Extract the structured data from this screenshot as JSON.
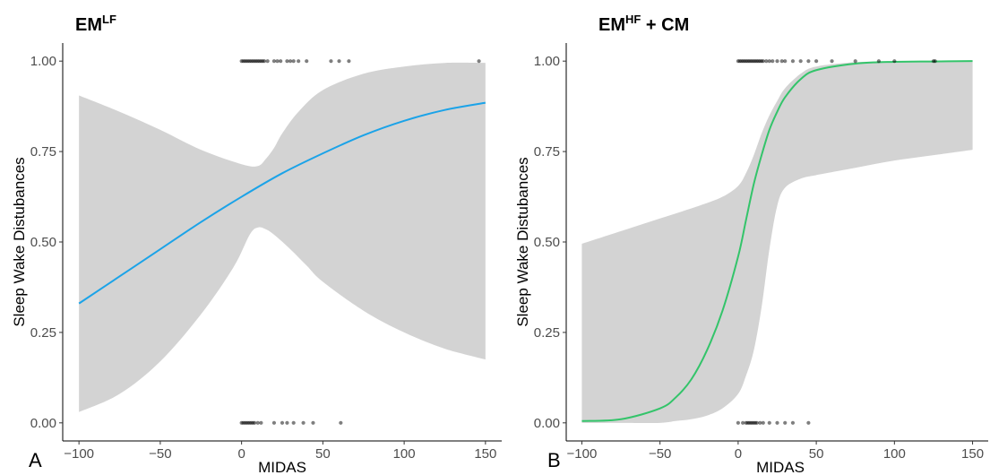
{
  "chart_data": [
    {
      "type": "line",
      "panel_label": "A",
      "title_main": "EM",
      "title_sup": "LF",
      "title_rest": "",
      "xlabel": "MIDAS",
      "ylabel": "Sleep Wake Distubances",
      "xlim": [
        -110,
        160
      ],
      "ylim": [
        -0.05,
        1.05
      ],
      "xticks": [
        -100,
        -50,
        0,
        50,
        100,
        150
      ],
      "xtick_labels": [
        "−100",
        "−50",
        "0",
        "50",
        "100",
        "150"
      ],
      "yticks": [
        0,
        0.25,
        0.5,
        0.75,
        1
      ],
      "ytick_labels": [
        "0.00",
        "0.25",
        "0.50",
        "0.75",
        "1.00"
      ],
      "line_color": "#1ba3e8",
      "fit": {
        "x": [
          -100,
          -75,
          -50,
          -25,
          0,
          25,
          50,
          75,
          100,
          125,
          150
        ],
        "y": [
          0.33,
          0.405,
          0.48,
          0.555,
          0.625,
          0.69,
          0.745,
          0.795,
          0.835,
          0.865,
          0.885
        ]
      },
      "ci_upper": {
        "x": [
          -100,
          -75,
          -50,
          -25,
          0,
          10,
          15,
          20,
          25,
          35,
          50,
          75,
          100,
          125,
          150
        ],
        "y": [
          0.905,
          0.86,
          0.81,
          0.755,
          0.715,
          0.71,
          0.73,
          0.76,
          0.8,
          0.86,
          0.92,
          0.965,
          0.985,
          0.995,
          0.995
        ]
      },
      "ci_lower": {
        "x": [
          -100,
          -75,
          -50,
          -25,
          -5,
          5,
          10,
          15,
          20,
          30,
          40,
          50,
          75,
          100,
          125,
          150
        ],
        "y": [
          0.03,
          0.08,
          0.17,
          0.3,
          0.43,
          0.52,
          0.54,
          0.535,
          0.52,
          0.48,
          0.435,
          0.39,
          0.31,
          0.25,
          0.205,
          0.175
        ]
      },
      "points_y1": [
        0,
        1,
        2,
        3,
        4,
        5,
        6,
        7,
        8,
        9,
        10,
        11,
        12,
        13,
        14,
        16,
        20,
        22,
        24,
        28,
        30,
        32,
        35,
        40,
        55,
        60,
        66,
        146
      ],
      "points_y0": [
        0,
        1,
        2,
        3,
        4,
        5,
        6,
        7,
        8,
        10,
        12,
        20,
        25,
        28,
        32,
        38,
        44,
        61
      ]
    },
    {
      "type": "line",
      "panel_label": "B",
      "title_main": "EM",
      "title_sup": "HF",
      "title_rest": " + CM",
      "xlabel": "MIDAS",
      "ylabel": "Sleep Wake Distubances",
      "xlim": [
        -110,
        160
      ],
      "ylim": [
        -0.05,
        1.05
      ],
      "xticks": [
        -100,
        -50,
        0,
        50,
        100,
        150
      ],
      "xtick_labels": [
        "−100",
        "−50",
        "0",
        "50",
        "100",
        "150"
      ],
      "yticks": [
        0,
        0.25,
        0.5,
        0.75,
        1
      ],
      "ytick_labels": [
        "0.00",
        "0.25",
        "0.50",
        "0.75",
        "1.00"
      ],
      "line_color": "#33c46a",
      "fit": {
        "x": [
          -100,
          -75,
          -50,
          -40,
          -30,
          -20,
          -10,
          0,
          5,
          10,
          15,
          20,
          25,
          30,
          40,
          50,
          75,
          100,
          125,
          150
        ],
        "y": [
          0.005,
          0.01,
          0.04,
          0.07,
          0.12,
          0.2,
          0.31,
          0.46,
          0.56,
          0.66,
          0.74,
          0.81,
          0.86,
          0.9,
          0.95,
          0.975,
          0.993,
          0.998,
          0.999,
          1.0
        ]
      },
      "ci_upper": {
        "x": [
          -100,
          -75,
          -50,
          -25,
          -10,
          0,
          5,
          10,
          15,
          20,
          25,
          30,
          40,
          50,
          75,
          100,
          125,
          150
        ],
        "y": [
          0.495,
          0.53,
          0.565,
          0.6,
          0.625,
          0.655,
          0.69,
          0.74,
          0.8,
          0.85,
          0.89,
          0.925,
          0.965,
          0.985,
          0.997,
          0.999,
          1.0,
          1.0
        ]
      },
      "ci_lower": {
        "x": [
          -100,
          -75,
          -50,
          -40,
          -30,
          -20,
          -10,
          0,
          5,
          10,
          15,
          20,
          25,
          30,
          40,
          50,
          75,
          100,
          125,
          150
        ],
        "y": [
          0.0,
          0.0,
          0.0,
          0.005,
          0.01,
          0.02,
          0.04,
          0.08,
          0.13,
          0.2,
          0.32,
          0.48,
          0.6,
          0.65,
          0.675,
          0.685,
          0.705,
          0.725,
          0.74,
          0.755
        ]
      },
      "points_y1": [
        0,
        1,
        2,
        3,
        4,
        5,
        6,
        7,
        8,
        9,
        10,
        11,
        12,
        13,
        14,
        15,
        16,
        18,
        20,
        22,
        25,
        28,
        30,
        35,
        40,
        45,
        50,
        60,
        75,
        90,
        100,
        125,
        126
      ],
      "points_y0": [
        0,
        3,
        5,
        6,
        7,
        8,
        9,
        10,
        11,
        12,
        14,
        16,
        20,
        25,
        30,
        35,
        45
      ]
    }
  ]
}
